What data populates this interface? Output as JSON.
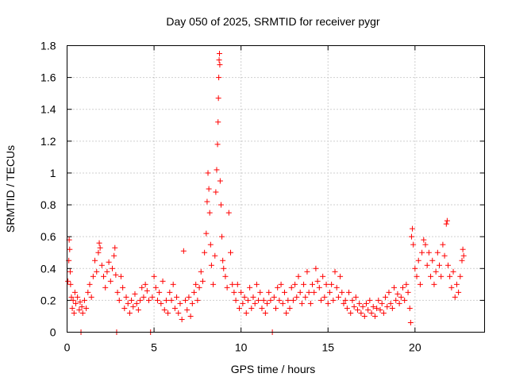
{
  "chart_data": {
    "type": "scatter",
    "title": "Day 050 of 2025, SRMTID for receiver pygr",
    "xlabel": "GPS time / hours",
    "ylabel": "SRMTID / TECUs",
    "xlim": [
      0,
      24
    ],
    "ylim": [
      0,
      1.8
    ],
    "xticks": [
      0,
      5,
      10,
      15,
      20
    ],
    "xtick_labels": [
      "0",
      "5",
      "10",
      "15",
      "20"
    ],
    "yticks": [
      0,
      0.2,
      0.4,
      0.6,
      0.8,
      1.0,
      1.2,
      1.4,
      1.6,
      1.8
    ],
    "ytick_labels": [
      "0",
      "0.2",
      "0.4",
      "0.6",
      "0.8",
      "1",
      "1.2",
      "1.4",
      "1.6",
      "1.8"
    ],
    "grid": true,
    "marker": "+",
    "color": "#ff0000",
    "series": [
      {
        "name": "pygr",
        "points": [
          [
            0.05,
            0.32
          ],
          [
            0.1,
            0.45
          ],
          [
            0.12,
            0.58
          ],
          [
            0.15,
            0.52
          ],
          [
            0.18,
            0.38
          ],
          [
            0.2,
            0.3
          ],
          [
            0.25,
            0.22
          ],
          [
            0.3,
            0.15
          ],
          [
            0.35,
            0.2
          ],
          [
            0.4,
            0.12
          ],
          [
            0.45,
            0.25
          ],
          [
            0.5,
            0.18
          ],
          [
            0.6,
            0.22
          ],
          [
            0.7,
            0.14
          ],
          [
            0.75,
            0.19
          ],
          [
            0.8,
            0.0
          ],
          [
            0.85,
            0.16
          ],
          [
            0.9,
            0.12
          ],
          [
            1.0,
            0.2
          ],
          [
            1.1,
            0.15
          ],
          [
            1.2,
            0.25
          ],
          [
            1.3,
            0.3
          ],
          [
            1.4,
            0.22
          ],
          [
            1.5,
            0.35
          ],
          [
            1.6,
            0.45
          ],
          [
            1.7,
            0.38
          ],
          [
            1.8,
            0.5
          ],
          [
            1.85,
            0.56
          ],
          [
            1.9,
            0.53
          ],
          [
            2.0,
            0.42
          ],
          [
            2.1,
            0.35
          ],
          [
            2.2,
            0.28
          ],
          [
            2.3,
            0.38
          ],
          [
            2.4,
            0.44
          ],
          [
            2.5,
            0.32
          ],
          [
            2.6,
            0.4
          ],
          [
            2.7,
            0.48
          ],
          [
            2.75,
            0.53
          ],
          [
            2.8,
            0.36
          ],
          [
            2.85,
            0.0
          ],
          [
            2.9,
            0.25
          ],
          [
            3.0,
            0.2
          ],
          [
            3.1,
            0.35
          ],
          [
            3.2,
            0.28
          ],
          [
            3.3,
            0.15
          ],
          [
            3.4,
            0.22
          ],
          [
            3.5,
            0.18
          ],
          [
            3.6,
            0.12
          ],
          [
            3.7,
            0.2
          ],
          [
            3.8,
            0.16
          ],
          [
            3.9,
            0.24
          ],
          [
            4.0,
            0.18
          ],
          [
            4.1,
            0.14
          ],
          [
            4.2,
            0.2
          ],
          [
            4.3,
            0.28
          ],
          [
            4.4,
            0.22
          ],
          [
            4.5,
            0.3
          ],
          [
            4.6,
            0.26
          ],
          [
            4.7,
            0.2
          ],
          [
            4.8,
            0.0
          ],
          [
            4.9,
            0.22
          ],
          [
            5.0,
            0.35
          ],
          [
            5.1,
            0.28
          ],
          [
            5.2,
            0.2
          ],
          [
            5.3,
            0.25
          ],
          [
            5.4,
            0.18
          ],
          [
            5.5,
            0.32
          ],
          [
            5.6,
            0.14
          ],
          [
            5.7,
            0.2
          ],
          [
            5.8,
            0.12
          ],
          [
            5.9,
            0.25
          ],
          [
            6.0,
            0.2
          ],
          [
            6.1,
            0.3
          ],
          [
            6.2,
            0.15
          ],
          [
            6.3,
            0.22
          ],
          [
            6.4,
            0.12
          ],
          [
            6.5,
            0.18
          ],
          [
            6.6,
            0.08
          ],
          [
            6.7,
            0.51
          ],
          [
            6.8,
            0.2
          ],
          [
            6.9,
            0.14
          ],
          [
            7.0,
            0.22
          ],
          [
            7.1,
            0.1
          ],
          [
            7.2,
            0.18
          ],
          [
            7.3,
            0.25
          ],
          [
            7.4,
            0.3
          ],
          [
            7.5,
            0.2
          ],
          [
            7.6,
            0.28
          ],
          [
            7.7,
            0.38
          ],
          [
            7.8,
            0.32
          ],
          [
            7.9,
            0.5
          ],
          [
            8.0,
            0.62
          ],
          [
            8.05,
            0.82
          ],
          [
            8.1,
            1.0
          ],
          [
            8.15,
            0.9
          ],
          [
            8.2,
            0.75
          ],
          [
            8.25,
            0.55
          ],
          [
            8.3,
            0.42
          ],
          [
            8.4,
            0.3
          ],
          [
            8.5,
            0.48
          ],
          [
            8.55,
            0.88
          ],
          [
            8.6,
            1.02
          ],
          [
            8.65,
            1.18
          ],
          [
            8.68,
            1.32
          ],
          [
            8.7,
            1.47
          ],
          [
            8.72,
            1.6
          ],
          [
            8.74,
            1.71
          ],
          [
            8.76,
            1.75
          ],
          [
            8.78,
            1.68
          ],
          [
            8.8,
            0.95
          ],
          [
            8.85,
            0.8
          ],
          [
            8.9,
            0.6
          ],
          [
            8.95,
            0.45
          ],
          [
            9.0,
            0.4
          ],
          [
            9.1,
            0.35
          ],
          [
            9.2,
            0.28
          ],
          [
            9.3,
            0.75
          ],
          [
            9.4,
            0.5
          ],
          [
            9.5,
            0.3
          ],
          [
            9.6,
            0.25
          ],
          [
            9.7,
            0.2
          ],
          [
            9.8,
            0.3
          ],
          [
            9.9,
            0.15
          ],
          [
            10.0,
            0.25
          ],
          [
            10.1,
            0.18
          ],
          [
            10.2,
            0.22
          ],
          [
            10.3,
            0.12
          ],
          [
            10.4,
            0.2
          ],
          [
            10.5,
            0.28
          ],
          [
            10.6,
            0.15
          ],
          [
            10.7,
            0.22
          ],
          [
            10.8,
            0.18
          ],
          [
            10.9,
            0.3
          ],
          [
            11.0,
            0.2
          ],
          [
            11.1,
            0.25
          ],
          [
            11.2,
            0.15
          ],
          [
            11.3,
            0.2
          ],
          [
            11.4,
            0.12
          ],
          [
            11.5,
            0.18
          ],
          [
            11.6,
            0.25
          ],
          [
            11.7,
            0.2
          ],
          [
            11.8,
            0.0
          ],
          [
            11.9,
            0.22
          ],
          [
            12.0,
            0.15
          ],
          [
            12.1,
            0.28
          ],
          [
            12.2,
            0.2
          ],
          [
            12.3,
            0.3
          ],
          [
            12.4,
            0.18
          ],
          [
            12.5,
            0.25
          ],
          [
            12.6,
            0.12
          ],
          [
            12.7,
            0.2
          ],
          [
            12.8,
            0.15
          ],
          [
            12.9,
            0.28
          ],
          [
            13.0,
            0.2
          ],
          [
            13.1,
            0.3
          ],
          [
            13.2,
            0.22
          ],
          [
            13.3,
            0.35
          ],
          [
            13.4,
            0.25
          ],
          [
            13.5,
            0.18
          ],
          [
            13.6,
            0.3
          ],
          [
            13.7,
            0.22
          ],
          [
            13.8,
            0.38
          ],
          [
            13.9,
            0.25
          ],
          [
            14.0,
            0.18
          ],
          [
            14.1,
            0.3
          ],
          [
            14.2,
            0.25
          ],
          [
            14.3,
            0.4
          ],
          [
            14.4,
            0.32
          ],
          [
            14.5,
            0.28
          ],
          [
            14.6,
            0.2
          ],
          [
            14.7,
            0.35
          ],
          [
            14.8,
            0.22
          ],
          [
            14.9,
            0.3
          ],
          [
            15.0,
            0.18
          ],
          [
            15.1,
            0.25
          ],
          [
            15.2,
            0.3
          ],
          [
            15.3,
            0.2
          ],
          [
            15.4,
            0.38
          ],
          [
            15.5,
            0.28
          ],
          [
            15.6,
            0.22
          ],
          [
            15.7,
            0.35
          ],
          [
            15.8,
            0.25
          ],
          [
            15.9,
            0.18
          ],
          [
            16.0,
            0.2
          ],
          [
            16.1,
            0.15
          ],
          [
            16.2,
            0.25
          ],
          [
            16.3,
            0.12
          ],
          [
            16.4,
            0.2
          ],
          [
            16.5,
            0.16
          ],
          [
            16.6,
            0.22
          ],
          [
            16.7,
            0.14
          ],
          [
            16.8,
            0.18
          ],
          [
            16.9,
            0.12
          ],
          [
            17.0,
            0.16
          ],
          [
            17.1,
            0.1
          ],
          [
            17.2,
            0.18
          ],
          [
            17.3,
            0.14
          ],
          [
            17.4,
            0.2
          ],
          [
            17.5,
            0.12
          ],
          [
            17.6,
            0.16
          ],
          [
            17.7,
            0.1
          ],
          [
            17.8,
            0.15
          ],
          [
            17.9,
            0.2
          ],
          [
            18.0,
            0.14
          ],
          [
            18.1,
            0.18
          ],
          [
            18.2,
            0.12
          ],
          [
            18.3,
            0.22
          ],
          [
            18.4,
            0.16
          ],
          [
            18.5,
            0.25
          ],
          [
            18.6,
            0.18
          ],
          [
            18.7,
            0.15
          ],
          [
            18.8,
            0.28
          ],
          [
            18.9,
            0.2
          ],
          [
            19.0,
            0.24
          ],
          [
            19.1,
            0.18
          ],
          [
            19.2,
            0.22
          ],
          [
            19.3,
            0.28
          ],
          [
            19.4,
            0.2
          ],
          [
            19.5,
            0.3
          ],
          [
            19.6,
            0.25
          ],
          [
            19.7,
            0.15
          ],
          [
            19.75,
            0.06
          ],
          [
            19.8,
            0.6
          ],
          [
            19.85,
            0.65
          ],
          [
            19.9,
            0.55
          ],
          [
            20.0,
            0.4
          ],
          [
            20.1,
            0.35
          ],
          [
            20.2,
            0.45
          ],
          [
            20.3,
            0.3
          ],
          [
            20.4,
            0.5
          ],
          [
            20.5,
            0.58
          ],
          [
            20.6,
            0.55
          ],
          [
            20.7,
            0.42
          ],
          [
            20.8,
            0.5
          ],
          [
            20.9,
            0.35
          ],
          [
            21.0,
            0.45
          ],
          [
            21.1,
            0.3
          ],
          [
            21.2,
            0.38
          ],
          [
            21.3,
            0.5
          ],
          [
            21.4,
            0.42
          ],
          [
            21.5,
            0.35
          ],
          [
            21.6,
            0.55
          ],
          [
            21.7,
            0.48
          ],
          [
            21.8,
            0.68
          ],
          [
            21.85,
            0.7
          ],
          [
            21.9,
            0.42
          ],
          [
            22.0,
            0.35
          ],
          [
            22.1,
            0.28
          ],
          [
            22.2,
            0.38
          ],
          [
            22.3,
            0.22
          ],
          [
            22.4,
            0.3
          ],
          [
            22.5,
            0.25
          ],
          [
            22.6,
            0.35
          ],
          [
            22.7,
            0.45
          ],
          [
            22.75,
            0.52
          ],
          [
            22.8,
            0.48
          ]
        ]
      }
    ]
  }
}
